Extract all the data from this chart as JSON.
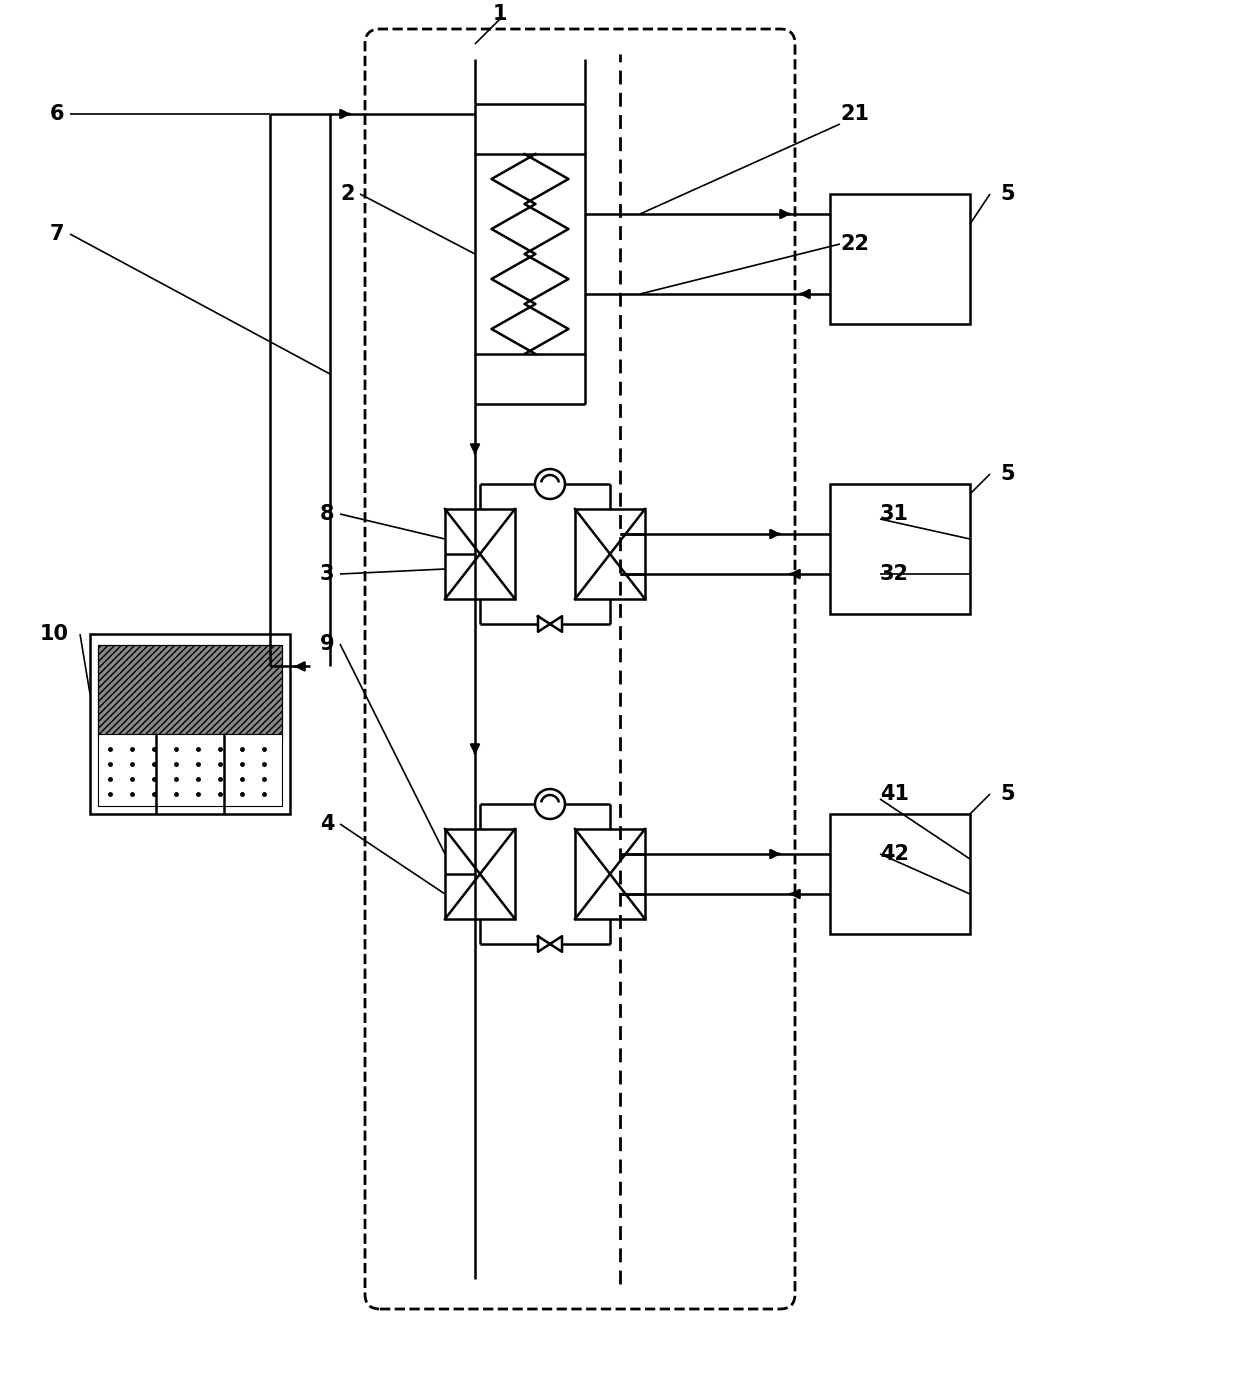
{
  "background": "#ffffff",
  "line_color": "#000000",
  "fig_width": 12.4,
  "fig_height": 13.74,
  "dpi": 100
}
